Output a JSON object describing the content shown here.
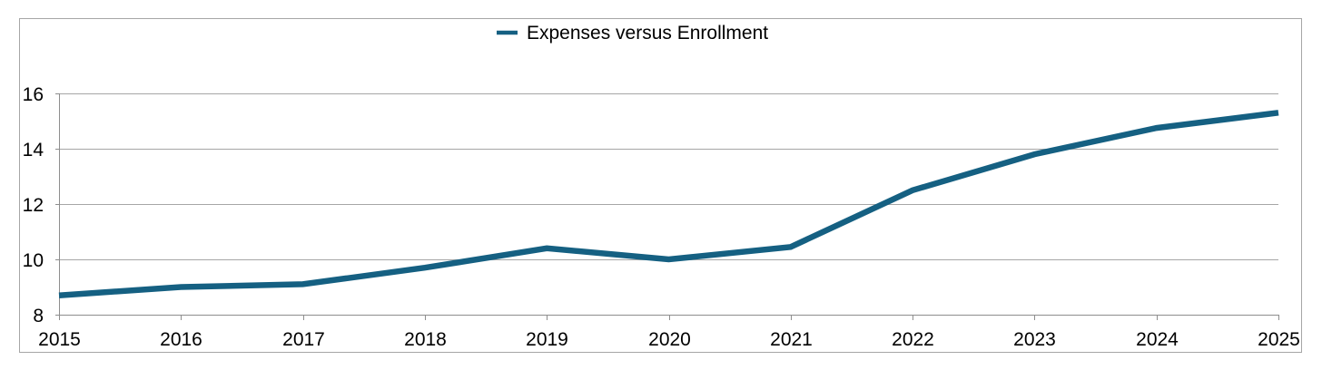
{
  "legend": {
    "label": "Expenses versus Enrollment"
  },
  "colors": {
    "line": "#156082",
    "gridline": "#a6a6a6",
    "axis": "#8e8e8e",
    "border": "#a6a6a6",
    "text": "#000000",
    "background": "#ffffff"
  },
  "chart_data": {
    "type": "line",
    "title": "Expenses versus Enrollment",
    "x": [
      2015,
      2016,
      2017,
      2018,
      2019,
      2020,
      2021,
      2022,
      2023,
      2024,
      2025
    ],
    "series": [
      {
        "name": "Expenses versus Enrollment",
        "values": [
          8.7,
          9.0,
          9.1,
          9.7,
          10.4,
          10.0,
          10.45,
          12.5,
          13.8,
          14.75,
          15.3
        ]
      }
    ],
    "xlabel": "",
    "ylabel": "",
    "ylim": [
      8,
      16
    ],
    "yticks": [
      8,
      10,
      12,
      14,
      16
    ],
    "grid": true,
    "legend_position": "top-center"
  }
}
